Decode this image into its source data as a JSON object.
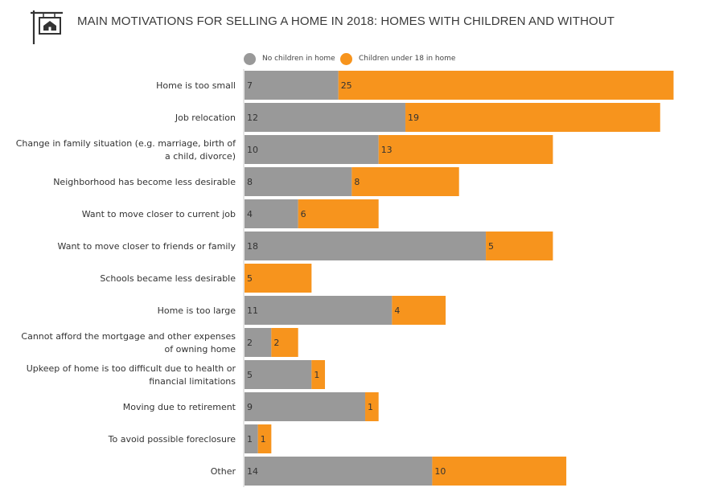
{
  "title": "MAIN MOTIVATIONS FOR SELLING A HOME IN 2018: HOMES WITH CHILDREN AND WITHOUT",
  "logo_icon": "house-sign-icon",
  "colors": {
    "no_children": "#999999",
    "children": "#f7941d",
    "axis": "#cccccc",
    "label": "#333333"
  },
  "chart_data": {
    "type": "bar",
    "orientation": "horizontal",
    "stacked": true,
    "legend_position": "top",
    "grid": false,
    "categories": [
      "Home is too small",
      "Job relocation",
      "Change in family situation (e.g. marriage, birth of a child, divorce)",
      "Neighborhood has become less desirable",
      "Want to move closer to current job",
      "Want to move closer to friends or family",
      "Schools became less desirable",
      "Home is too large",
      "Cannot afford the mortgage and other expenses of owning home",
      "Upkeep of home is too difficult due to health or financial limitations",
      "Moving due to retirement",
      "To avoid possible foreclosure",
      "Other"
    ],
    "category_label_lines": [
      [
        "Home is too small"
      ],
      [
        "Job relocation"
      ],
      [
        "Change in family situation (e.g. marriage, birth of",
        "a child, divorce)"
      ],
      [
        "Neighborhood has become less desirable"
      ],
      [
        "Want to move closer to current job"
      ],
      [
        "Want to move closer to friends or family"
      ],
      [
        "Schools became less desirable"
      ],
      [
        "Home is too large"
      ],
      [
        "Cannot afford the mortgage and other expenses",
        "of owning home"
      ],
      [
        "Upkeep of home is too difficult due to health or",
        "financial limitations"
      ],
      [
        "Moving due to retirement"
      ],
      [
        "To avoid possible foreclosure"
      ],
      [
        "Other"
      ]
    ],
    "series": [
      {
        "name": "No children in home",
        "values": [
          7,
          12,
          10,
          8,
          4,
          18,
          0,
          11,
          2,
          5,
          9,
          1,
          14
        ]
      },
      {
        "name": "Children under 18 in home",
        "values": [
          25,
          19,
          13,
          8,
          6,
          5,
          5,
          4,
          2,
          1,
          1,
          1,
          10
        ]
      }
    ],
    "xlim": [
      0,
      32
    ]
  }
}
